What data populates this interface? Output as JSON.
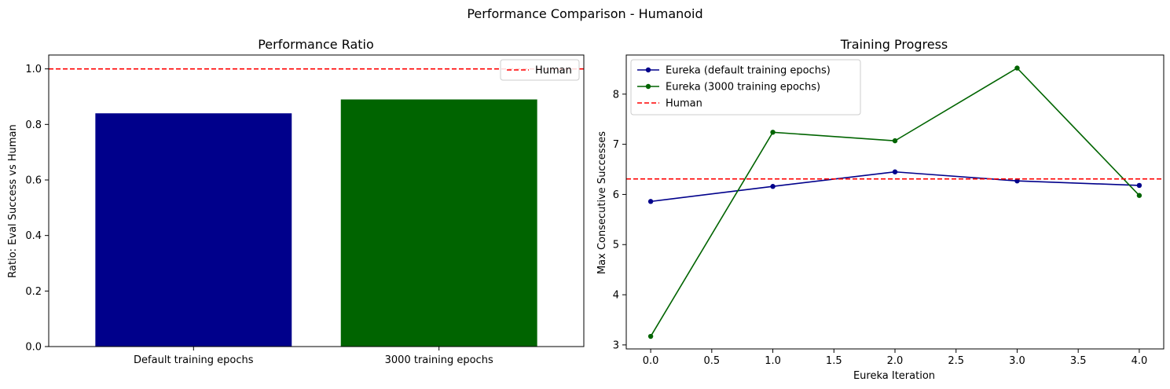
{
  "figure": {
    "suptitle": "Performance Comparison - Humanoid"
  },
  "chart_data": [
    {
      "type": "bar",
      "title": "Performance Ratio",
      "xlabel": "",
      "ylabel": "Ratio: Eval Success vs Human",
      "categories": [
        "Default training epochs",
        "3000 training epochs"
      ],
      "values": [
        0.84,
        0.89
      ],
      "colors": [
        "#00008b",
        "#006400"
      ],
      "ylim": [
        0,
        1.05
      ],
      "yticks": [
        0.0,
        0.2,
        0.4,
        0.6,
        0.8,
        1.0
      ],
      "ytick_labels": [
        "0.0",
        "0.2",
        "0.4",
        "0.6",
        "0.8",
        "1.0"
      ],
      "reference_line": {
        "name": "Human",
        "y": 1.0,
        "color": "#ff0000",
        "style": "dashed"
      },
      "legend": {
        "position": "upper right",
        "entries": [
          "Human"
        ]
      },
      "grid": false
    },
    {
      "type": "line",
      "title": "Training Progress",
      "xlabel": "Eureka Iteration",
      "ylabel": "Max Consecutive Successes",
      "x": [
        0,
        1,
        2,
        3,
        4
      ],
      "series": [
        {
          "name": "Eureka (default training epochs)",
          "values": [
            5.86,
            6.16,
            6.45,
            6.27,
            6.18
          ],
          "color": "#00008b",
          "marker": "circle"
        },
        {
          "name": "Eureka (3000 training epochs)",
          "values": [
            3.17,
            7.24,
            7.07,
            8.52,
            5.98
          ],
          "color": "#006400",
          "marker": "circle"
        }
      ],
      "reference_line": {
        "name": "Human",
        "y": 6.31,
        "color": "#ff0000",
        "style": "dashed"
      },
      "xlim": [
        -0.2,
        4.2
      ],
      "ylim": [
        2.92,
        8.78
      ],
      "xticks": [
        0.0,
        0.5,
        1.0,
        1.5,
        2.0,
        2.5,
        3.0,
        3.5,
        4.0
      ],
      "xtick_labels": [
        "0.0",
        "0.5",
        "1.0",
        "1.5",
        "2.0",
        "2.5",
        "3.0",
        "3.5",
        "4.0"
      ],
      "yticks": [
        3,
        4,
        5,
        6,
        7,
        8
      ],
      "ytick_labels": [
        "3",
        "4",
        "5",
        "6",
        "7",
        "8"
      ],
      "legend": {
        "position": "upper left",
        "entries": [
          "Eureka (default training epochs)",
          "Eureka (3000 training epochs)",
          "Human"
        ]
      },
      "grid": false
    }
  ]
}
